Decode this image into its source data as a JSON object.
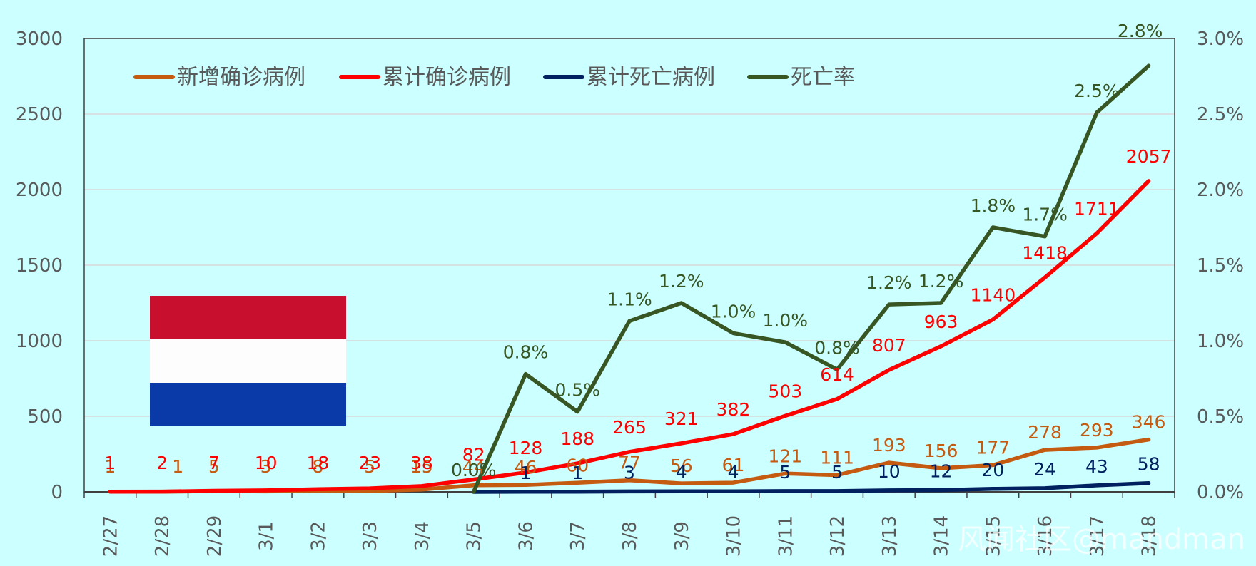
{
  "chart_data": {
    "type": "line",
    "categories": [
      "2/27",
      "2/28",
      "2/29",
      "3/1",
      "3/2",
      "3/3",
      "3/4",
      "3/5",
      "3/6",
      "3/7",
      "3/8",
      "3/9",
      "3/10",
      "3/11",
      "3/12",
      "3/13",
      "3/14",
      "3/15",
      "3/16",
      "3/17",
      "3/18"
    ],
    "y_left": {
      "ticks": [
        "0",
        "500",
        "1000",
        "1500",
        "2000",
        "2500",
        "3000"
      ],
      "lim": [
        0,
        3000
      ]
    },
    "y_right": {
      "ticks": [
        "0.0%",
        "0.5%",
        "1.0%",
        "1.5%",
        "2.0%",
        "2.5%",
        "3.0%"
      ],
      "lim": [
        0,
        3.0
      ]
    },
    "grid": true,
    "legend_position": "top-left",
    "series": [
      {
        "name": "新增确诊病例",
        "color": "#c55a11",
        "axis": "left",
        "values": [
          1,
          1,
          5,
          3,
          8,
          5,
          15,
          44,
          46,
          60,
          77,
          56,
          61,
          121,
          111,
          193,
          156,
          177,
          278,
          293,
          346
        ],
        "labels": [
          "1",
          "1",
          "5",
          "3",
          "8",
          "5",
          "15",
          "44",
          "46",
          "60",
          "77",
          "56",
          "61",
          "121",
          "111",
          "193",
          "156",
          "177",
          "278",
          "293",
          "346"
        ]
      },
      {
        "name": "累计确诊病例",
        "color": "#ff0000",
        "axis": "left",
        "values": [
          1,
          2,
          7,
          10,
          18,
          23,
          38,
          82,
          128,
          188,
          265,
          321,
          382,
          503,
          614,
          807,
          963,
          1140,
          1418,
          1711,
          2057
        ],
        "labels": [
          "1",
          "2",
          "7",
          "10",
          "18",
          "23",
          "38",
          "82",
          "128",
          "188",
          "265",
          "321",
          "382",
          "503",
          "614",
          "807",
          "963",
          "1140",
          "1418",
          "1711",
          "2057"
        ]
      },
      {
        "name": "累计死亡病例",
        "color": "#002060",
        "axis": "left",
        "values": [
          null,
          null,
          null,
          null,
          null,
          null,
          null,
          0,
          1,
          1,
          3,
          4,
          4,
          5,
          5,
          10,
          12,
          20,
          24,
          43,
          58
        ],
        "labels": [
          "",
          "",
          "",
          "",
          "",
          "",
          "",
          "",
          "1",
          "1",
          "3",
          "4",
          "4",
          "5",
          "5",
          "10",
          "12",
          "20",
          "24",
          "43",
          "58"
        ]
      },
      {
        "name": "死亡率",
        "color": "#375623",
        "axis": "right",
        "values": [
          null,
          null,
          null,
          null,
          null,
          null,
          null,
          0.0,
          0.78,
          0.53,
          1.13,
          1.25,
          1.05,
          0.99,
          0.81,
          1.24,
          1.25,
          1.75,
          1.69,
          2.51,
          2.82
        ],
        "labels": [
          "",
          "",
          "",
          "",
          "",
          "",
          "",
          "0.0%",
          "0.8%",
          "0.5%",
          "1.1%",
          "1.2%",
          "1.0%",
          "1.0%",
          "0.8%",
          "1.2%",
          "1.2%",
          "1.8%",
          "1.7%",
          "2.5%",
          "2.8%"
        ]
      }
    ]
  },
  "flag": {
    "name": "netherlands-flag",
    "colors": [
      "#c8102e",
      "#fdfdfd",
      "#0a3aa8"
    ]
  },
  "watermark": "风闻社区@mandman"
}
